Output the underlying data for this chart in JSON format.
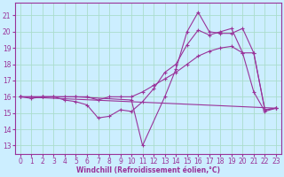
{
  "xlabel": "Windchill (Refroidissement éolien,°C)",
  "background_color": "#cceeff",
  "grid_color": "#aaddcc",
  "line_color": "#993399",
  "xlim": [
    -0.5,
    23.5
  ],
  "ylim": [
    12.5,
    21.8
  ],
  "yticks": [
    13,
    14,
    15,
    16,
    17,
    18,
    19,
    20,
    21
  ],
  "xticks": [
    0,
    1,
    2,
    3,
    4,
    5,
    6,
    7,
    8,
    9,
    10,
    11,
    12,
    13,
    14,
    15,
    16,
    17,
    18,
    19,
    20,
    21,
    22,
    23
  ],
  "lines": [
    {
      "x": [
        0,
        23
      ],
      "y": [
        16,
        15.3
      ]
    },
    {
      "x": [
        0,
        1,
        2,
        3,
        4,
        5,
        6,
        7,
        8,
        9,
        10,
        11,
        12,
        13,
        14,
        15,
        16,
        17,
        18,
        19,
        20,
        21,
        22,
        23
      ],
      "y": [
        16,
        16,
        16,
        16,
        16,
        16,
        16,
        15.8,
        16,
        16,
        16,
        16.3,
        16.7,
        17.1,
        17.5,
        18.0,
        18.5,
        18.8,
        19.0,
        19.1,
        18.7,
        18.7,
        15.2,
        15.3
      ]
    },
    {
      "x": [
        0,
        1,
        2,
        3,
        4,
        5,
        6,
        7,
        8,
        9,
        10,
        11,
        12,
        13,
        14,
        15,
        16,
        17,
        18,
        19,
        20,
        21,
        22,
        23
      ],
      "y": [
        16,
        15.9,
        16,
        16,
        15.8,
        15.7,
        15.5,
        14.7,
        14.8,
        15.2,
        15.1,
        15.7,
        16.5,
        17.5,
        18.0,
        19.2,
        20.1,
        19.8,
        20.0,
        20.2,
        18.7,
        16.3,
        15.1,
        15.3
      ]
    },
    {
      "x": [
        0,
        2,
        5,
        10,
        11,
        13,
        14,
        15,
        16,
        17,
        18,
        19,
        20,
        21,
        22,
        23
      ],
      "y": [
        16,
        16,
        16,
        15.8,
        13.0,
        16.0,
        17.7,
        20.0,
        21.2,
        20.0,
        19.9,
        19.9,
        20.2,
        18.7,
        15.2,
        15.3
      ]
    }
  ]
}
